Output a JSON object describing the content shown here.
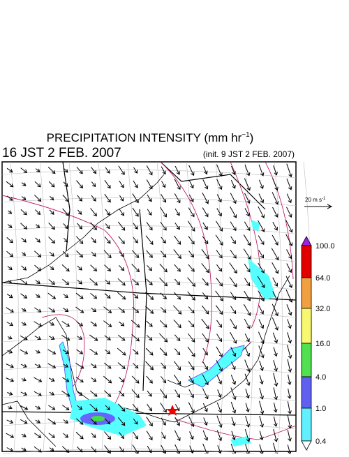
{
  "header": {
    "title": "PRECIPITATION INTENSITY (mm hr",
    "title_exponent": "−1",
    "title_close": ")",
    "valid_time": "16 JST 2 FEB. 2007",
    "init_time": "(init. 9 JST 2 FEB. 2007)"
  },
  "vector_legend": {
    "label": "20 m s",
    "exponent": "-1"
  },
  "colorbar": {
    "labels": [
      "100.0",
      "64.0",
      "32.0",
      "16.0",
      "4.0",
      "1.0",
      "0.4"
    ]
  }
}
